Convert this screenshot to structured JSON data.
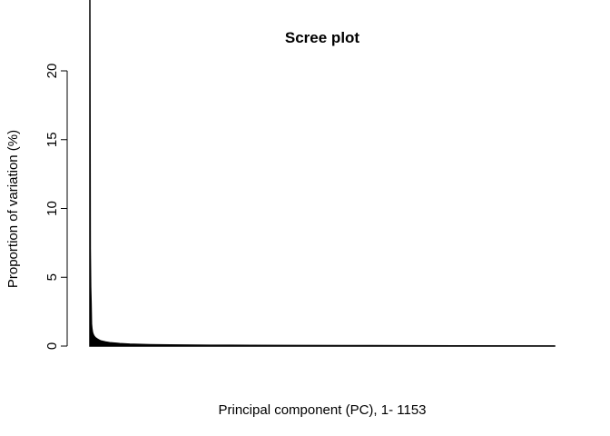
{
  "chart_data": {
    "type": "area",
    "title": "Scree plot",
    "x_label": "Principal component (PC), 1- 1153",
    "y_label": "Proportion of variation (%)",
    "x": [
      1,
      2,
      3,
      4,
      5,
      6,
      7,
      8,
      10,
      12,
      15,
      20,
      25,
      30,
      40,
      50,
      75,
      100,
      150,
      200,
      300,
      400,
      500,
      700,
      900,
      1153
    ],
    "values": [
      26,
      7.1,
      4.3,
      3.2,
      1.6,
      1.3,
      1.1,
      0.95,
      0.8,
      0.7,
      0.6,
      0.5,
      0.42,
      0.36,
      0.3,
      0.25,
      0.18,
      0.14,
      0.1,
      0.08,
      0.06,
      0.05,
      0.04,
      0.03,
      0.02,
      0.01
    ],
    "color": "#000000",
    "xlim": [
      1,
      1153
    ],
    "ylim": [
      0,
      20
    ],
    "yticks": [
      0,
      5,
      10,
      15,
      20
    ]
  }
}
